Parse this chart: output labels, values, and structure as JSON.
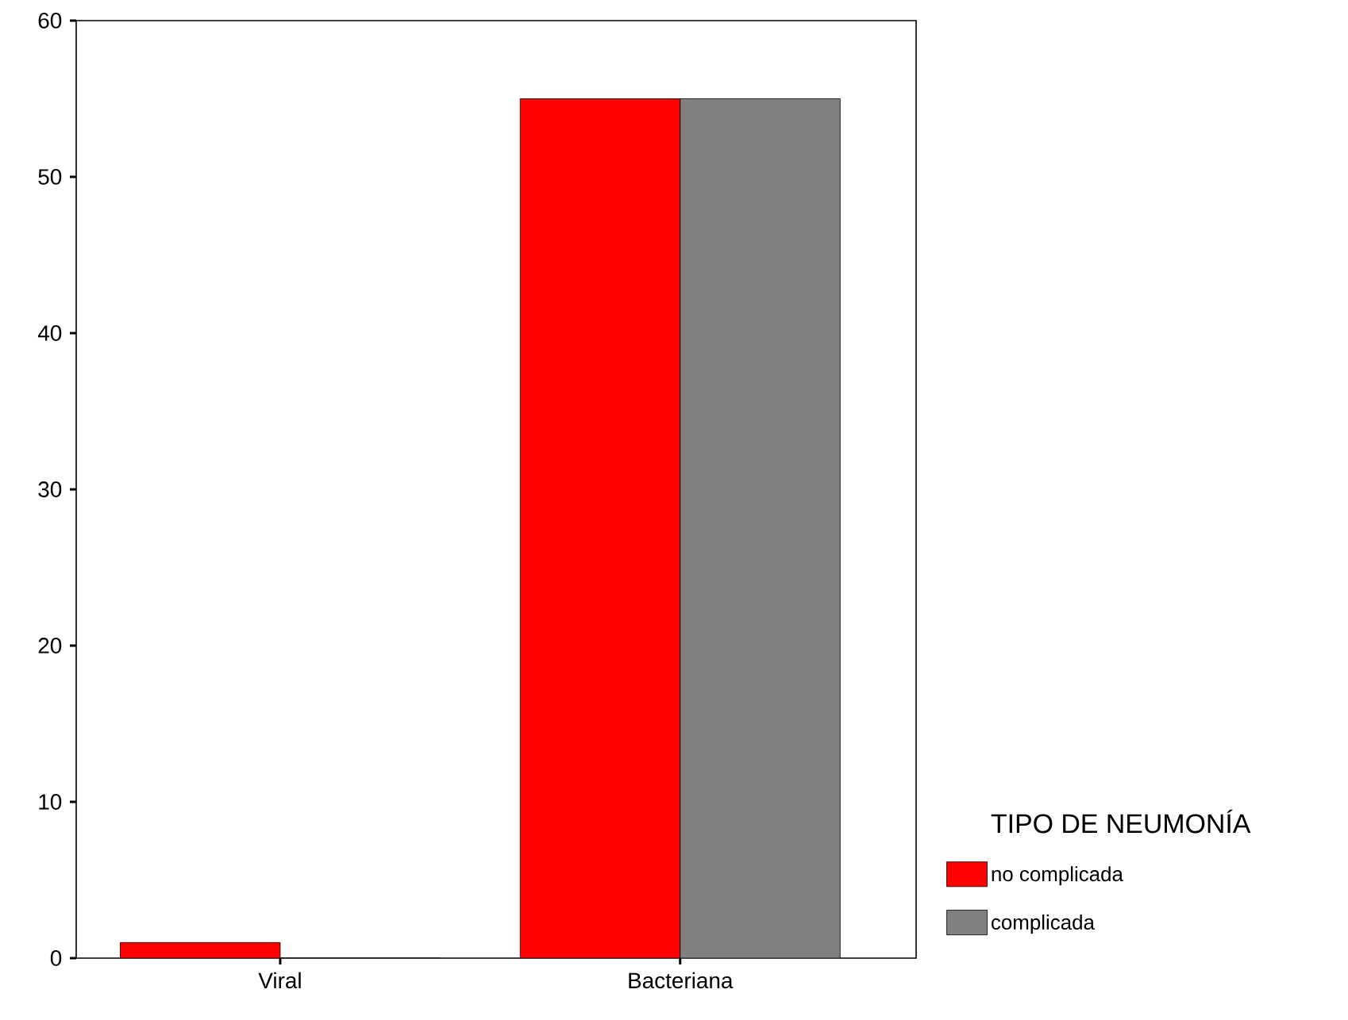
{
  "chart_data": {
    "type": "bar",
    "categories": [
      "Viral",
      "Bacteriana"
    ],
    "series": [
      {
        "name": "no complicada",
        "color": "#ff0000",
        "values": [
          1,
          55
        ]
      },
      {
        "name": "complicada",
        "color": "#808080",
        "values": [
          0,
          55
        ]
      }
    ],
    "ylim": [
      0,
      60
    ],
    "yticks": [
      0,
      10,
      20,
      30,
      40,
      50,
      60
    ],
    "legend_title": "TIPO DE NEUMONÍA",
    "legend": "right"
  }
}
